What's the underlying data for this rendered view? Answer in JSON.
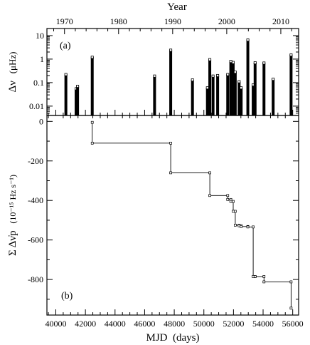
{
  "chart_data": [
    {
      "panel_label": "(a)",
      "type": "bar",
      "scale": "log",
      "ylabel_symbol": "Δν",
      "ylabel_unit": "(μHz)",
      "ylim": [
        0.004,
        20
      ],
      "yticks": [
        0.01,
        0.1,
        1,
        10
      ],
      "ytick_labels": [
        "0.01",
        "0.1",
        "1",
        "10"
      ],
      "top_axis_title": "Year",
      "top_ticks": [
        1970,
        1980,
        1990,
        2000,
        2010
      ],
      "top_tick_labels": [
        "1970",
        "1980",
        "1990",
        "2000",
        "2010"
      ],
      "x": [
        40680,
        41370,
        41470,
        42460,
        46670,
        47760,
        49230,
        50240,
        50400,
        50620,
        50930,
        51610,
        51820,
        51980,
        52120,
        52380,
        52520,
        52970,
        53330,
        53460,
        54060,
        54680,
        55890
      ],
      "values": [
        0.22,
        0.055,
        0.07,
        1.2,
        0.19,
        2.4,
        0.13,
        0.06,
        0.95,
        0.19,
        0.2,
        0.22,
        0.8,
        0.72,
        0.28,
        0.11,
        0.06,
        6.5,
        0.08,
        0.7,
        0.68,
        0.14,
        1.5
      ]
    },
    {
      "panel_label": "(b)",
      "type": "line",
      "step": true,
      "xlabel": "MJD  (days)",
      "ylabel_symbol": "Σ Δν̇p",
      "ylabel_unit": "(10⁻¹⁵ Hz s⁻¹)",
      "xlim": [
        39400,
        56400
      ],
      "ylim": [
        -980,
        30
      ],
      "xticks": [
        40000,
        42000,
        44000,
        46000,
        48000,
        50000,
        52000,
        54000,
        56000
      ],
      "xtick_labels": [
        "40000",
        "42000",
        "44000",
        "46000",
        "48000",
        "50000",
        "52000",
        "54000",
        "56000"
      ],
      "yticks": [
        0,
        -200,
        -400,
        -600,
        -800
      ],
      "ytick_labels": [
        "0",
        "-200",
        "-400",
        "-600",
        "-800"
      ],
      "x": [
        42460,
        42460,
        47760,
        47760,
        50400,
        50400,
        51610,
        51610,
        51820,
        51820,
        51980,
        51980,
        52120,
        52120,
        52380,
        52380,
        52520,
        52520,
        52970,
        52970,
        53330,
        53330,
        53460,
        53460,
        54060,
        54060,
        55890,
        55890
      ],
      "y": [
        -5,
        -110,
        -110,
        -260,
        -260,
        -375,
        -375,
        -395,
        -395,
        -405,
        -405,
        -455,
        -455,
        -525,
        -525,
        -528,
        -528,
        -532,
        -532,
        -534,
        -534,
        -785,
        -785,
        -785,
        -785,
        -812,
        -812,
        -945
      ]
    }
  ]
}
